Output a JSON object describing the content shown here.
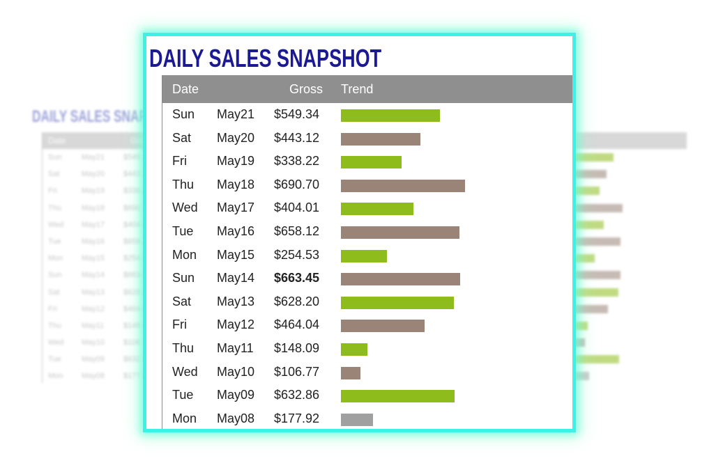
{
  "title": "DAILY SALES SNAPSHOT",
  "background_title": "DAILY SALES SNAP",
  "columns": {
    "date": "Date",
    "gross": "Gross",
    "trend": "Trend"
  },
  "colors": {
    "title": "#1c1a93",
    "header_bg": "#8f8f8f",
    "bar_green": "#8fbc1d",
    "bar_brown": "#9a8478",
    "bar_gray": "#a0a0a0",
    "frame_glow": "#3ff0e6"
  },
  "chart_data": {
    "type": "table",
    "title": "DAILY SALES SNAPSHOT",
    "xlabel": "",
    "ylabel": "",
    "columns": [
      "Date",
      "Gross",
      "Trend"
    ],
    "rows": [
      {
        "day": "Sun",
        "date": "May21",
        "gross_text": "$549.34",
        "value": 549.34,
        "color": "green",
        "bold": false
      },
      {
        "day": "Sat",
        "date": "May20",
        "gross_text": "$443.12",
        "value": 443.12,
        "color": "brown",
        "bold": false
      },
      {
        "day": "Fri",
        "date": "May19",
        "gross_text": "$338.22",
        "value": 338.22,
        "color": "green",
        "bold": false
      },
      {
        "day": "Thu",
        "date": "May18",
        "gross_text": "$690.70",
        "value": 690.7,
        "color": "brown",
        "bold": false
      },
      {
        "day": "Wed",
        "date": "May17",
        "gross_text": "$404.01",
        "value": 404.01,
        "color": "green",
        "bold": false
      },
      {
        "day": "Tue",
        "date": "May16",
        "gross_text": "$658.12",
        "value": 658.12,
        "color": "brown",
        "bold": false
      },
      {
        "day": "Mon",
        "date": "May15",
        "gross_text": "$254.53",
        "value": 254.53,
        "color": "green",
        "bold": false
      },
      {
        "day": "Sun",
        "date": "May14",
        "gross_text": "$663.45",
        "value": 663.45,
        "color": "brown",
        "bold": true
      },
      {
        "day": "Sat",
        "date": "May13",
        "gross_text": "$628.20",
        "value": 628.2,
        "color": "green",
        "bold": false
      },
      {
        "day": "Fri",
        "date": "May12",
        "gross_text": "$464.04",
        "value": 464.04,
        "color": "brown",
        "bold": false
      },
      {
        "day": "Thu",
        "date": "May11",
        "gross_text": "$148.09",
        "value": 148.09,
        "color": "green",
        "bold": false
      },
      {
        "day": "Wed",
        "date": "May10",
        "gross_text": "$106.77",
        "value": 106.77,
        "color": "brown",
        "bold": false
      },
      {
        "day": "Tue",
        "date": "May09",
        "gross_text": "$632.86",
        "value": 632.86,
        "color": "green",
        "bold": false
      },
      {
        "day": "Mon",
        "date": "May08",
        "gross_text": "$177.92",
        "value": 177.92,
        "color": "gray",
        "bold": false
      }
    ]
  }
}
